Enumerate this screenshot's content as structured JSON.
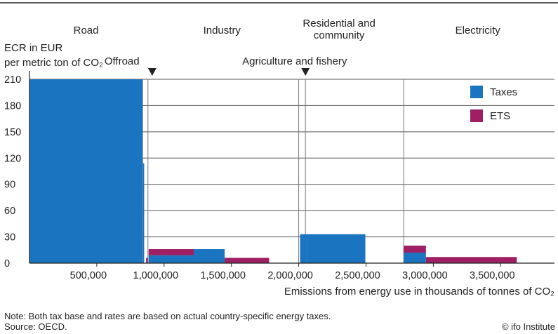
{
  "chart_data": {
    "type": "bar",
    "variable_width": true,
    "xlabel": "Emissions from energy use in thousands of tonnes of CO₂",
    "ylabel_line1": "ECR in EUR",
    "ylabel_line2": "per metric ton of CO₂",
    "xlim": [
      0,
      3900000
    ],
    "ylim": [
      0,
      210
    ],
    "y_ticks": [
      0,
      30,
      60,
      90,
      120,
      150,
      180,
      210
    ],
    "x_ticks": [
      500000,
      1000000,
      1500000,
      2000000,
      2500000,
      3000000,
      3500000
    ],
    "x_tick_labels": [
      "500,000",
      "1,000,000",
      "1,500,000",
      "2,000,000",
      "2,500,000",
      "3,000,000",
      "3,500,000"
    ],
    "legend": [
      {
        "name": "Taxes",
        "color": "#1a74bf"
      },
      {
        "name": "ETS",
        "color": "#9e1f63"
      }
    ],
    "legend_position": "top-right",
    "sectors": [
      {
        "label_lines": [
          "Road"
        ],
        "center": 420000
      },
      {
        "label_lines": [
          "Industry"
        ],
        "center": 1430000
      },
      {
        "label_lines": [
          "Residential and",
          "community"
        ],
        "center": 2300000
      },
      {
        "label_lines": [
          "Electricity"
        ],
        "center": 3330000
      }
    ],
    "callouts": [
      {
        "label": "Offroad",
        "x": 870000
      },
      {
        "label": "Agriculture and fishery",
        "x": 2050000
      }
    ],
    "sector_dividers": [
      840000,
      880000,
      2000000,
      2050000,
      2780000
    ],
    "bars": [
      {
        "x0": 0,
        "x1": 840000,
        "taxes": 210,
        "ets": 0
      },
      {
        "x0": 843000,
        "x1": 852000,
        "taxes": 114,
        "ets": 0
      },
      {
        "x0": 866000,
        "x1": 878000,
        "taxes": 0,
        "ets": 6
      },
      {
        "x0": 885000,
        "x1": 1220000,
        "taxes": 9,
        "ets": 7
      },
      {
        "x0": 1220000,
        "x1": 1450000,
        "taxes": 16,
        "ets": 0
      },
      {
        "x0": 1450000,
        "x1": 1780000,
        "taxes": 0,
        "ets": 6
      },
      {
        "x0": 2010000,
        "x1": 2060000,
        "taxes": 33,
        "ets": 0
      },
      {
        "x0": 2060000,
        "x1": 2495000,
        "taxes": 33,
        "ets": 0
      },
      {
        "x0": 2780000,
        "x1": 2945000,
        "taxes": 12,
        "ets": 8
      },
      {
        "x0": 2945000,
        "x1": 3620000,
        "taxes": 0,
        "ets": 7
      }
    ]
  },
  "footer": {
    "note": "Note: Both tax base and rates are based on actual country-specific energy taxes.",
    "source": "Source: OECD.",
    "credit": "© ifo Institute"
  },
  "colors": {
    "taxes": "#1a74bf",
    "ets": "#9e1f63",
    "grid": "#555555"
  }
}
